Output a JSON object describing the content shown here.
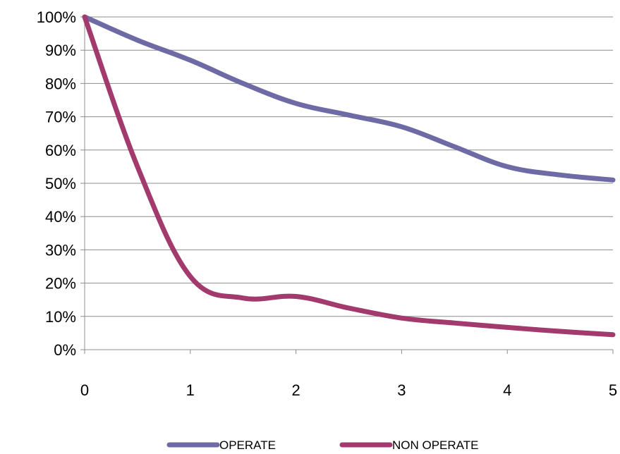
{
  "chart_data": {
    "type": "line",
    "x": [
      0,
      0.5,
      1,
      1.5,
      2,
      2.5,
      3,
      3.5,
      4,
      4.5,
      5
    ],
    "x_tick_labels": [
      "0",
      "1",
      "2",
      "3",
      "4",
      "5"
    ],
    "x_ticks": [
      0,
      1,
      2,
      3,
      4,
      5
    ],
    "y_tick_labels": [
      "0%",
      "10%",
      "20%",
      "30%",
      "40%",
      "50%",
      "60%",
      "70%",
      "80%",
      "90%",
      "100%"
    ],
    "y_ticks": [
      0,
      10,
      20,
      30,
      40,
      50,
      60,
      70,
      80,
      90,
      100
    ],
    "xlim": [
      0,
      5
    ],
    "ylim": [
      0,
      100
    ],
    "grid": true,
    "legend_position": "bottom",
    "series": [
      {
        "name": "OPERATE",
        "color": "#6e6aa6",
        "values": [
          100,
          93,
          87,
          80,
          74,
          70.5,
          67,
          61,
          55,
          52.5,
          51
        ]
      },
      {
        "name": "NON OPERATE",
        "color": "#a23a6e",
        "values": [
          100,
          55,
          22,
          15.5,
          16,
          12.5,
          9.5,
          8,
          6.7,
          5.5,
          4.5
        ]
      }
    ]
  }
}
